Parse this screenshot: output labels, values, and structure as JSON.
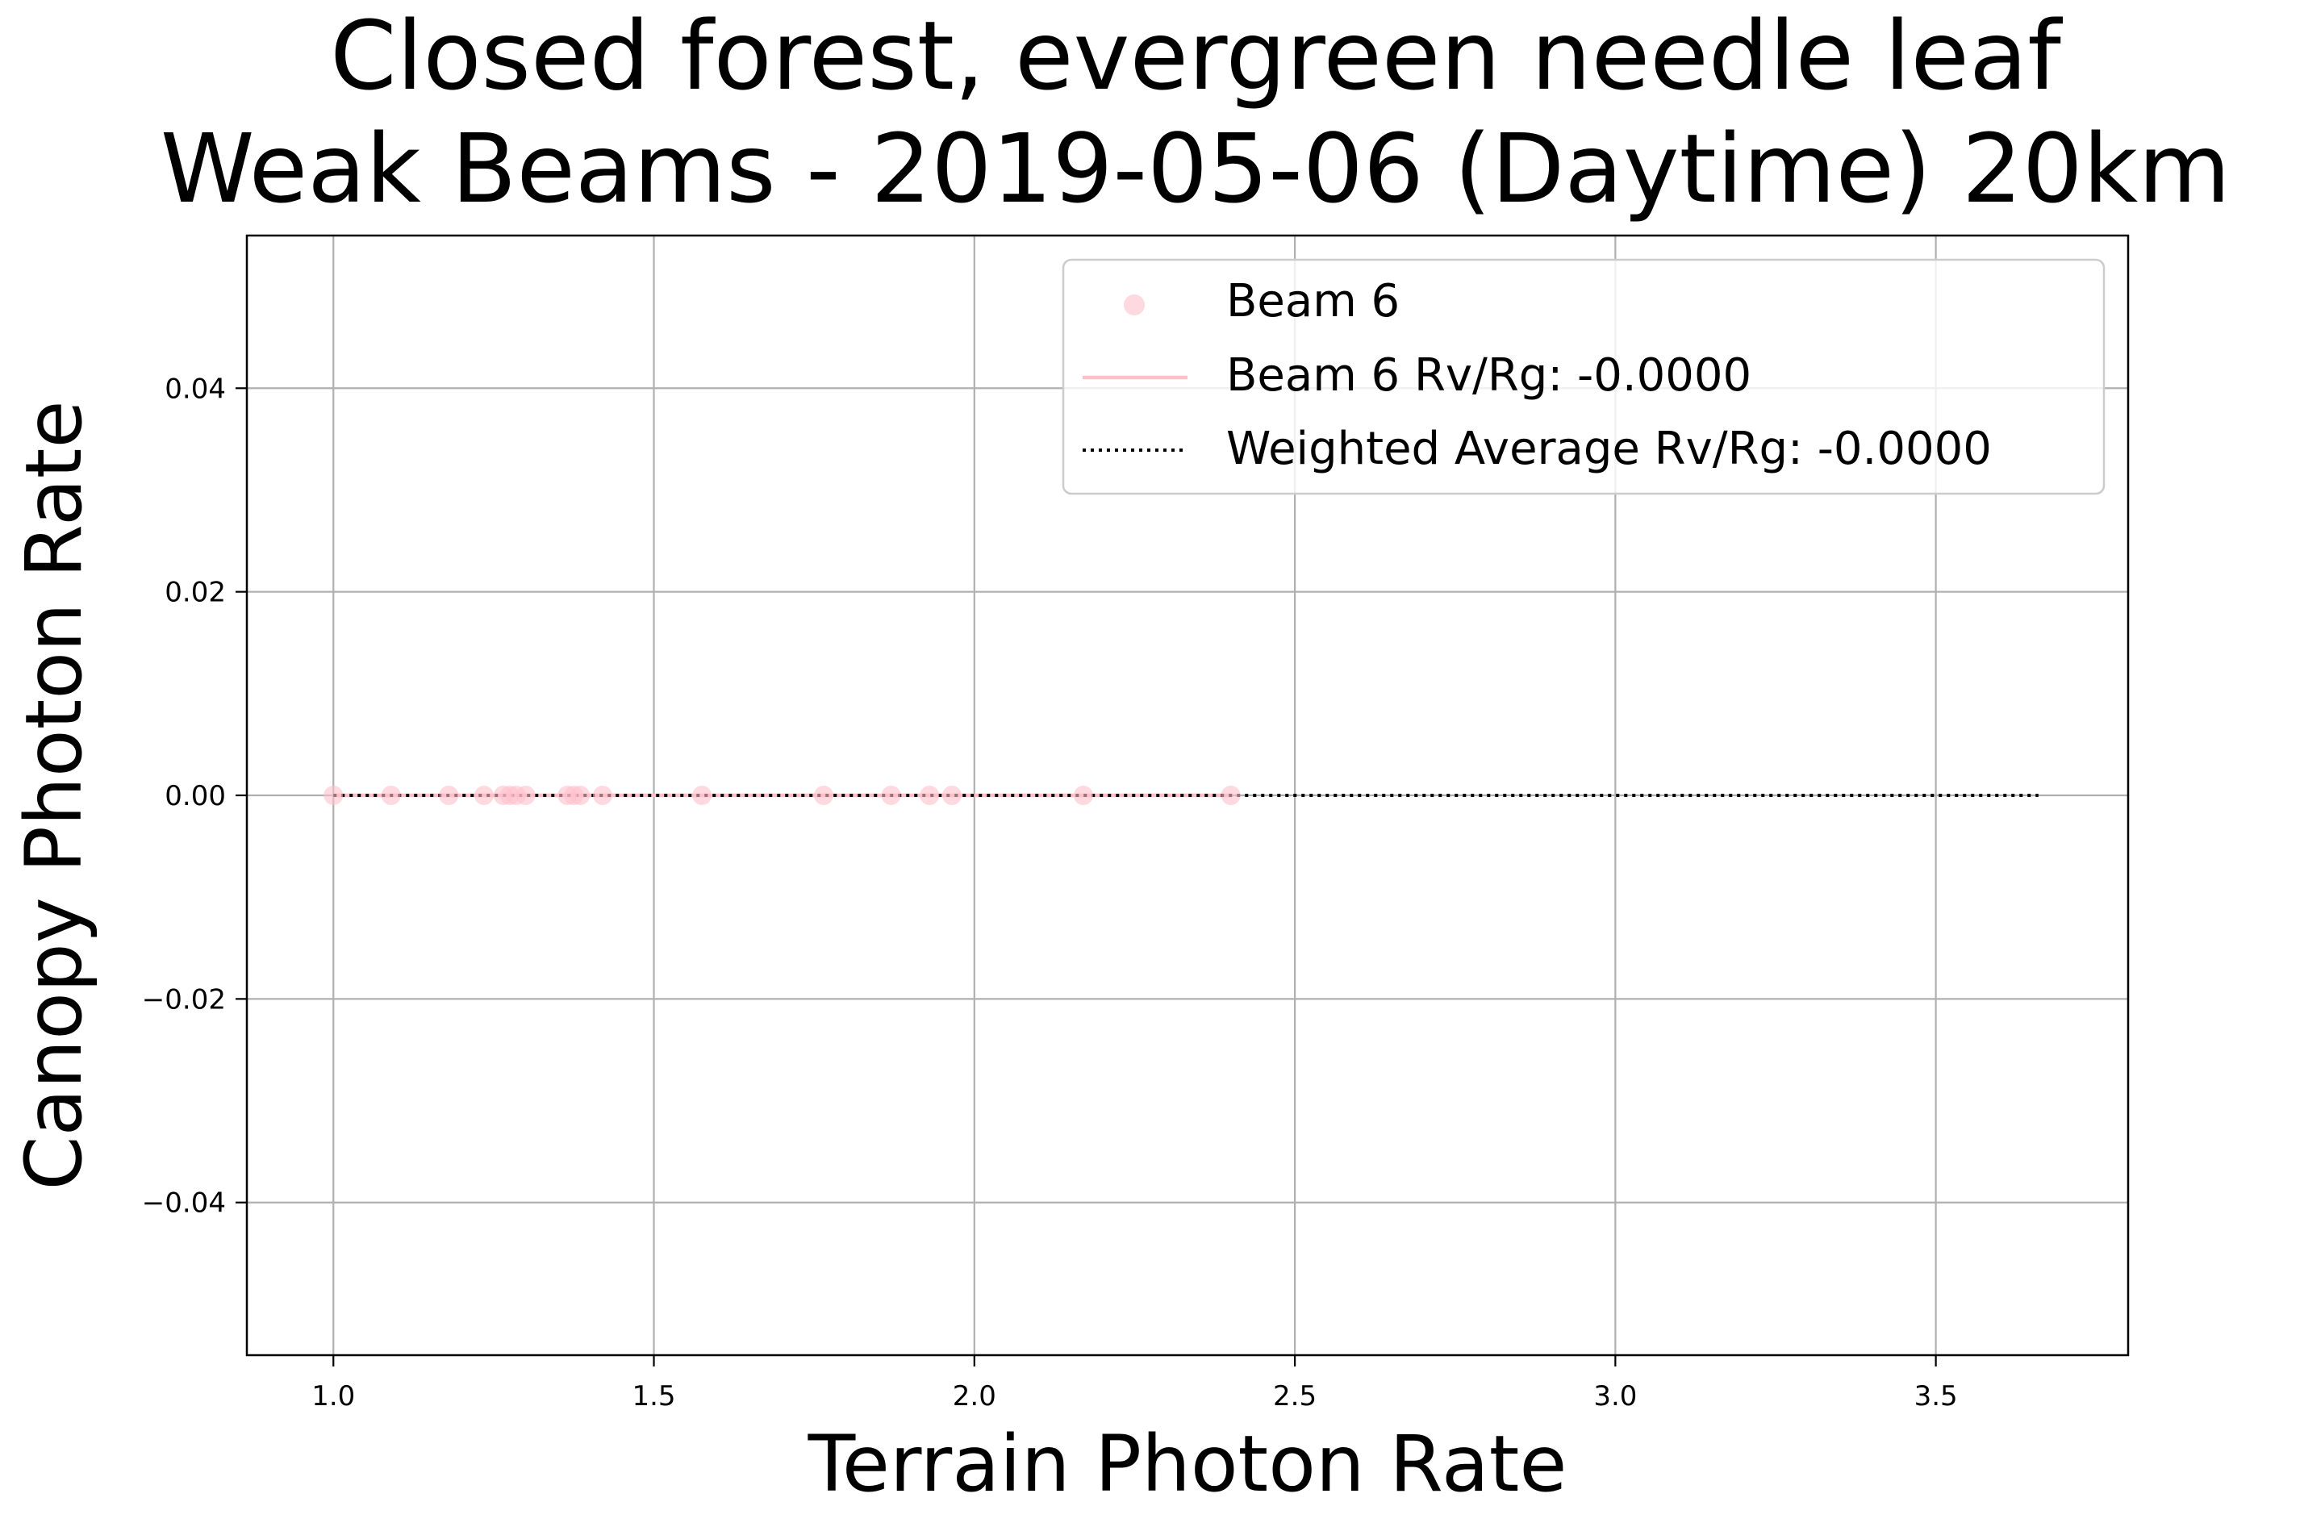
{
  "chart_data": {
    "type": "scatter",
    "title": "Closed forest, evergreen needle leaf\nWeak Beams - 2019-05-06 (Daytime) 20km",
    "xlabel": "Terrain Photon Rate",
    "ylabel": "Canopy Photon Rate",
    "xlim": [
      0.865,
      3.8
    ],
    "ylim": [
      -0.055,
      0.055
    ],
    "xticks": [
      1.0,
      1.5,
      2.0,
      2.5,
      3.0,
      3.5
    ],
    "xtick_labels": [
      "1.0",
      "1.5",
      "2.0",
      "2.5",
      "3.0",
      "3.5"
    ],
    "yticks": [
      0.04,
      0.02,
      0.0,
      -0.02,
      -0.04
    ],
    "ytick_labels": [
      "0.04",
      "0.02",
      "0.00",
      "−0.02",
      "−0.04"
    ],
    "grid": true,
    "legend_position": "upper-right",
    "legend": [
      {
        "label": "Beam 6",
        "kind": "marker",
        "color": "#ffc0cb"
      },
      {
        "label": "Beam 6 Rv/Rg: -0.0000",
        "kind": "solid-line",
        "color": "#ffc0cb"
      },
      {
        "label": "Weighted Average Rv/Rg: -0.0000",
        "kind": "dotted-line",
        "color": "#000000"
      }
    ],
    "series": [
      {
        "name": "Beam 6",
        "kind": "scatter",
        "color": "#ffc0cb",
        "x": [
          1.0,
          1.09,
          1.18,
          1.235,
          1.265,
          1.275,
          1.285,
          1.3,
          1.365,
          1.375,
          1.385,
          1.42,
          1.575,
          1.765,
          1.87,
          1.93,
          1.965,
          2.17,
          2.4
        ],
        "y": [
          0,
          0,
          0,
          0,
          0,
          0,
          0,
          0,
          0,
          0,
          0,
          0,
          0,
          0,
          0,
          0,
          0,
          0,
          0
        ]
      },
      {
        "name": "Beam 6 Rv/Rg: -0.0000",
        "kind": "line",
        "color": "#ffc0cb",
        "x": [
          1.0,
          2.4
        ],
        "y": [
          0,
          0
        ]
      },
      {
        "name": "Weighted Average Rv/Rg: -0.0000",
        "kind": "dotted-line",
        "color": "#000000",
        "x": [
          1.0,
          3.66
        ],
        "y": [
          0,
          0
        ]
      }
    ]
  }
}
